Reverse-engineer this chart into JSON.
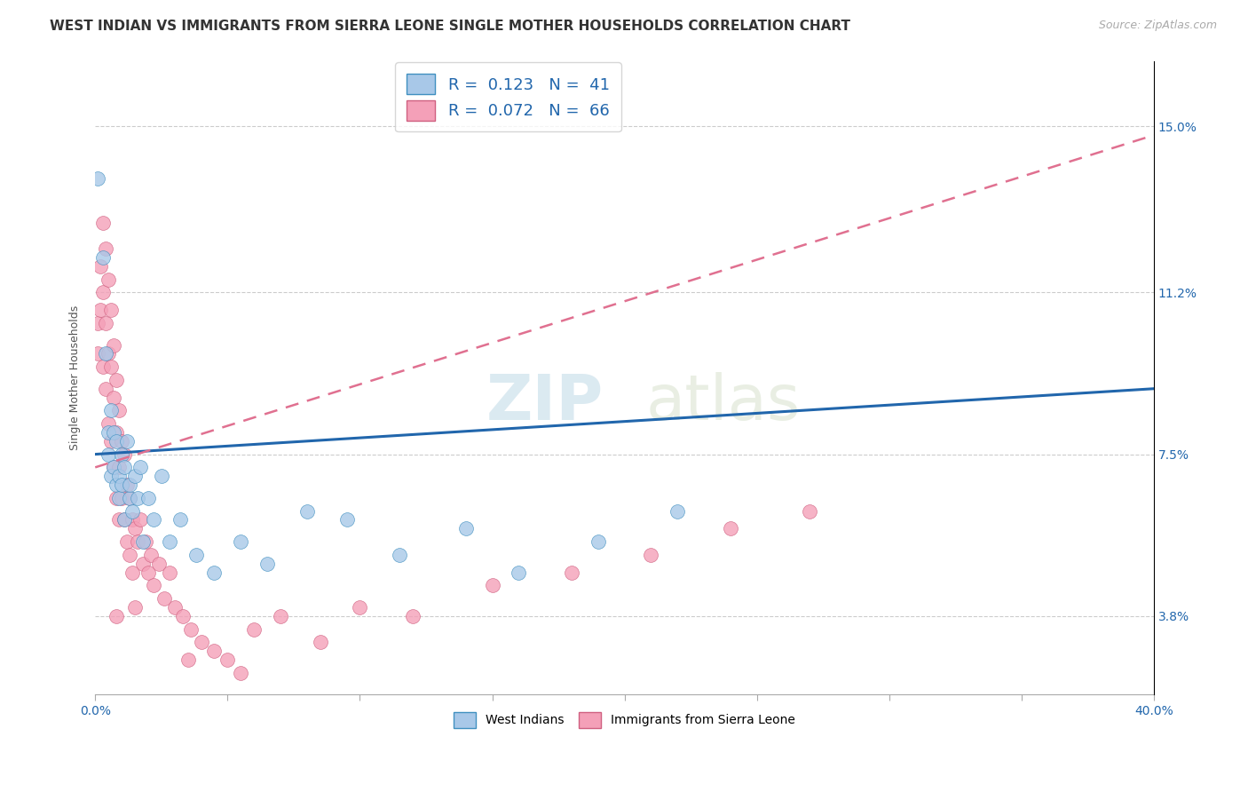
{
  "title": "WEST INDIAN VS IMMIGRANTS FROM SIERRA LEONE SINGLE MOTHER HOUSEHOLDS CORRELATION CHART",
  "source": "Source: ZipAtlas.com",
  "ylabel": "Single Mother Households",
  "xlim": [
    0.0,
    0.4
  ],
  "ylim": [
    0.02,
    0.165
  ],
  "yticks": [
    0.038,
    0.075,
    0.112,
    0.15
  ],
  "ytick_labels": [
    "3.8%",
    "7.5%",
    "11.2%",
    "15.0%"
  ],
  "legend_r1": "R =  0.123   N =  41",
  "legend_r2": "R =  0.072   N =  66",
  "legend_label1": "West Indians",
  "legend_label2": "Immigrants from Sierra Leone",
  "color_blue": "#a8c8e8",
  "color_pink": "#f4a0b8",
  "color_blue_line": "#2166ac",
  "color_pink_line": "#e07090",
  "color_legend_text": "#2166ac",
  "watermark_zip": "ZIP",
  "watermark_atlas": "atlas",
  "west_indian_x": [
    0.001,
    0.003,
    0.004,
    0.005,
    0.005,
    0.006,
    0.006,
    0.007,
    0.007,
    0.008,
    0.008,
    0.009,
    0.009,
    0.01,
    0.01,
    0.011,
    0.011,
    0.012,
    0.013,
    0.013,
    0.014,
    0.015,
    0.016,
    0.017,
    0.018,
    0.02,
    0.022,
    0.025,
    0.028,
    0.032,
    0.038,
    0.045,
    0.055,
    0.065,
    0.08,
    0.095,
    0.115,
    0.14,
    0.16,
    0.19,
    0.22
  ],
  "west_indian_y": [
    0.138,
    0.12,
    0.098,
    0.08,
    0.075,
    0.085,
    0.07,
    0.072,
    0.08,
    0.068,
    0.078,
    0.065,
    0.07,
    0.075,
    0.068,
    0.072,
    0.06,
    0.078,
    0.065,
    0.068,
    0.062,
    0.07,
    0.065,
    0.072,
    0.055,
    0.065,
    0.06,
    0.07,
    0.055,
    0.06,
    0.052,
    0.048,
    0.055,
    0.05,
    0.062,
    0.06,
    0.052,
    0.058,
    0.048,
    0.055,
    0.062
  ],
  "sierra_leone_x": [
    0.001,
    0.001,
    0.002,
    0.002,
    0.003,
    0.003,
    0.003,
    0.004,
    0.004,
    0.004,
    0.005,
    0.005,
    0.005,
    0.006,
    0.006,
    0.006,
    0.007,
    0.007,
    0.007,
    0.008,
    0.008,
    0.008,
    0.009,
    0.009,
    0.009,
    0.01,
    0.01,
    0.011,
    0.011,
    0.012,
    0.012,
    0.013,
    0.013,
    0.014,
    0.014,
    0.015,
    0.016,
    0.017,
    0.018,
    0.019,
    0.02,
    0.021,
    0.022,
    0.024,
    0.026,
    0.028,
    0.03,
    0.033,
    0.036,
    0.04,
    0.045,
    0.05,
    0.06,
    0.07,
    0.085,
    0.1,
    0.12,
    0.15,
    0.18,
    0.21,
    0.24,
    0.27,
    0.035,
    0.055,
    0.015,
    0.008
  ],
  "sierra_leone_y": [
    0.105,
    0.098,
    0.118,
    0.108,
    0.128,
    0.112,
    0.095,
    0.122,
    0.105,
    0.09,
    0.115,
    0.098,
    0.082,
    0.108,
    0.095,
    0.078,
    0.1,
    0.088,
    0.072,
    0.092,
    0.08,
    0.065,
    0.085,
    0.072,
    0.06,
    0.078,
    0.065,
    0.075,
    0.06,
    0.068,
    0.055,
    0.065,
    0.052,
    0.06,
    0.048,
    0.058,
    0.055,
    0.06,
    0.05,
    0.055,
    0.048,
    0.052,
    0.045,
    0.05,
    0.042,
    0.048,
    0.04,
    0.038,
    0.035,
    0.032,
    0.03,
    0.028,
    0.035,
    0.038,
    0.032,
    0.04,
    0.038,
    0.045,
    0.048,
    0.052,
    0.058,
    0.062,
    0.028,
    0.025,
    0.04,
    0.038
  ],
  "title_fontsize": 11,
  "source_fontsize": 9,
  "axis_label_fontsize": 9,
  "tick_fontsize": 10,
  "legend_fontsize": 13
}
